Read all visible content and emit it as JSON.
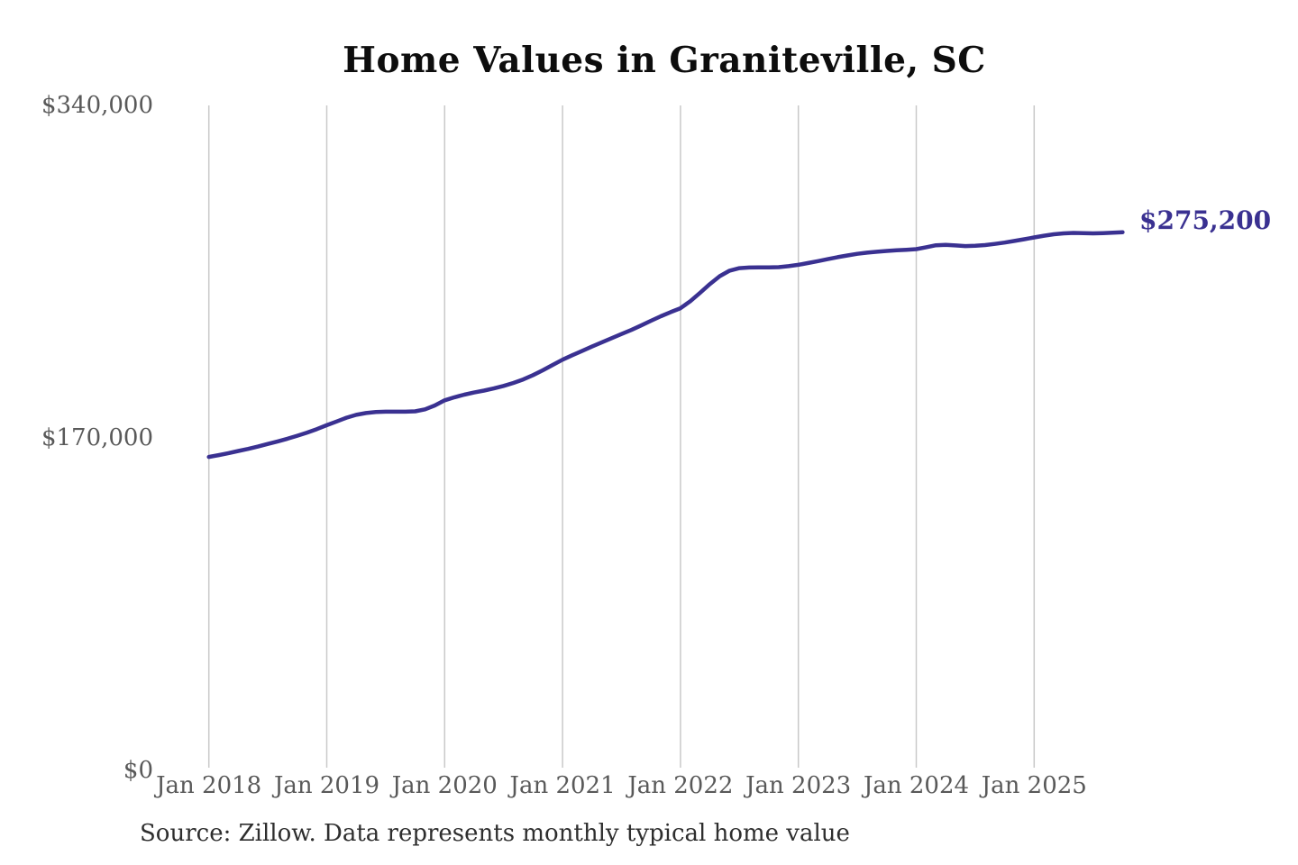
{
  "page": {
    "background_color": "#ffffff"
  },
  "chart": {
    "title": "Home Values in Graniteville, SC",
    "end_label": "$275,200",
    "source_note": "Source: Zillow. Data represents monthly typical home value",
    "line_color": "#3a3191",
    "grid_color": "#c9c9c9",
    "axis_label_color": "#595959"
  },
  "chart_data": {
    "type": "line",
    "title": "Home Values in Graniteville, SC",
    "series_name": "Monthly typical home value",
    "frequency": "monthly",
    "x_start": "Jan 2018",
    "x_end": "Oct 2025",
    "ylim": [
      0,
      340000
    ],
    "grid": "vertical-only",
    "legend": "none",
    "last_value": 275200,
    "last_value_label": "$275,200",
    "y_ticks": [
      {
        "label": "$0",
        "value": 0
      },
      {
        "label": "$170,000",
        "value": 170000
      },
      {
        "label": "$340,000",
        "value": 340000
      }
    ],
    "x_ticks": [
      {
        "label": "Jan 2018",
        "month_index": 0
      },
      {
        "label": "Jan 2019",
        "month_index": 12
      },
      {
        "label": "Jan 2020",
        "month_index": 24
      },
      {
        "label": "Jan 2021",
        "month_index": 36
      },
      {
        "label": "Jan 2022",
        "month_index": 48
      },
      {
        "label": "Jan 2023",
        "month_index": 60
      },
      {
        "label": "Jan 2024",
        "month_index": 72
      },
      {
        "label": "Jan 2025",
        "month_index": 84
      }
    ],
    "values": [
      160300,
      161200,
      162200,
      163300,
      164400,
      165600,
      166900,
      168200,
      169600,
      171100,
      172700,
      174500,
      176500,
      178400,
      180300,
      181800,
      182700,
      183200,
      183400,
      183400,
      183400,
      183600,
      184600,
      186600,
      189200,
      190800,
      192100,
      193200,
      194200,
      195300,
      196600,
      198100,
      199900,
      202100,
      204600,
      207300,
      210000,
      212300,
      214500,
      216700,
      218900,
      221000,
      223100,
      225200,
      227500,
      229900,
      232200,
      234300,
      236300,
      239900,
      244200,
      248700,
      252700,
      255500,
      256800,
      257100,
      257200,
      257200,
      257300,
      257800,
      258500,
      259400,
      260400,
      261400,
      262400,
      263300,
      264100,
      264700,
      265200,
      265600,
      265900,
      266200,
      266500,
      267500,
      268500,
      268700,
      268400,
      268100,
      268200,
      268600,
      269200,
      269900,
      270700,
      271600,
      272500,
      273400,
      274100,
      274600,
      274800,
      274700,
      274600,
      274700,
      274900,
      275200
    ]
  }
}
